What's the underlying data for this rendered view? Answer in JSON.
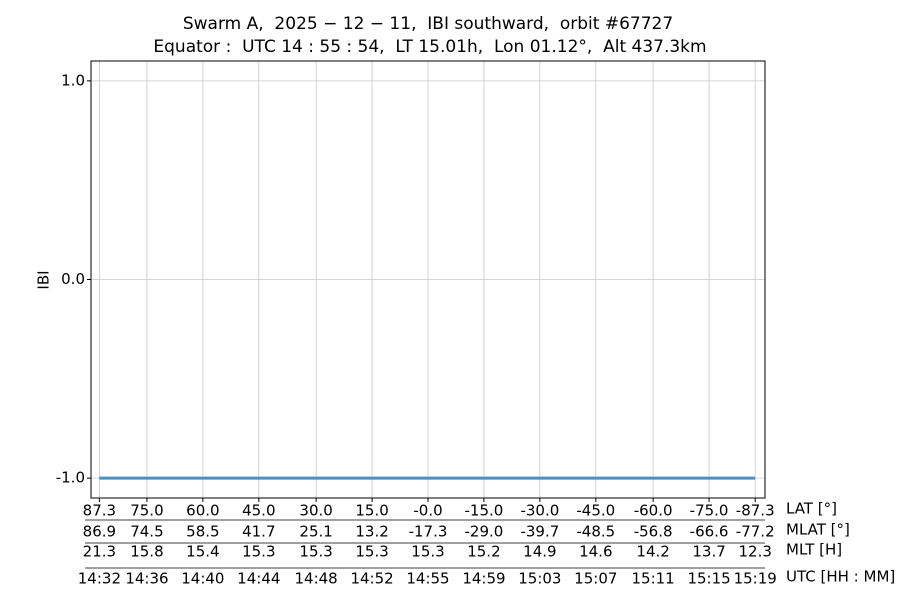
{
  "chart_data": {
    "type": "line",
    "title": "Swarm A,  2025 − 12 − 11,  IBI southward,  orbit #67727",
    "subtitle": "Equator :  UTC 14 : 55 : 54,  LT 15.01h,  Lon 01.12°,  Alt 437.3km",
    "y_label": "IBI",
    "x": [
      0,
      46.9
    ],
    "series": [
      {
        "name": "IBI",
        "color": "#4a90c2",
        "values": [
          -1.0,
          -1.0
        ]
      }
    ],
    "xlim": [
      -0.6,
      47.6
    ],
    "xticks": [
      0,
      3.4,
      7.4,
      11.4,
      15.5,
      19.5,
      23.5,
      27.5,
      31.5,
      35.5,
      39.6,
      43.6,
      46.9
    ],
    "ylim": [
      -1.1,
      1.1
    ],
    "yticks": [
      {
        "value": -1,
        "label": "-1.0"
      },
      {
        "value": 0,
        "label": "0.0"
      },
      {
        "value": 1,
        "label": "1.0"
      }
    ],
    "grid": true,
    "tick_rows": [
      {
        "name": "LAT [°]",
        "labels": [
          "87.3",
          "75.0",
          "60.0",
          "45.0",
          "30.0",
          "15.0",
          "-0.0",
          "-15.0",
          "-30.0",
          "-45.0",
          "-60.0",
          "-75.0",
          "-87.3"
        ]
      },
      {
        "name": "MLAT [°]",
        "labels": [
          "86.9",
          "74.5",
          "58.5",
          "41.7",
          "25.1",
          "13.2",
          "-17.3",
          "-29.0",
          "-39.7",
          "-48.5",
          "-56.8",
          "-66.6",
          "-77.2"
        ]
      },
      {
        "name": "MLT [H]",
        "labels": [
          "21.3",
          "15.8",
          "15.4",
          "15.3",
          "15.3",
          "15.3",
          "15.3",
          "15.2",
          "14.9",
          "14.6",
          "14.2",
          "13.7",
          "12.3"
        ]
      },
      {
        "name": "UTC [HH : MM]",
        "labels": [
          "14:32",
          "14:36",
          "14:40",
          "14:44",
          "14:48",
          "14:52",
          "14:55",
          "14:59",
          "15:03",
          "15:07",
          "15:11",
          "15:15",
          "15:19"
        ]
      }
    ]
  }
}
